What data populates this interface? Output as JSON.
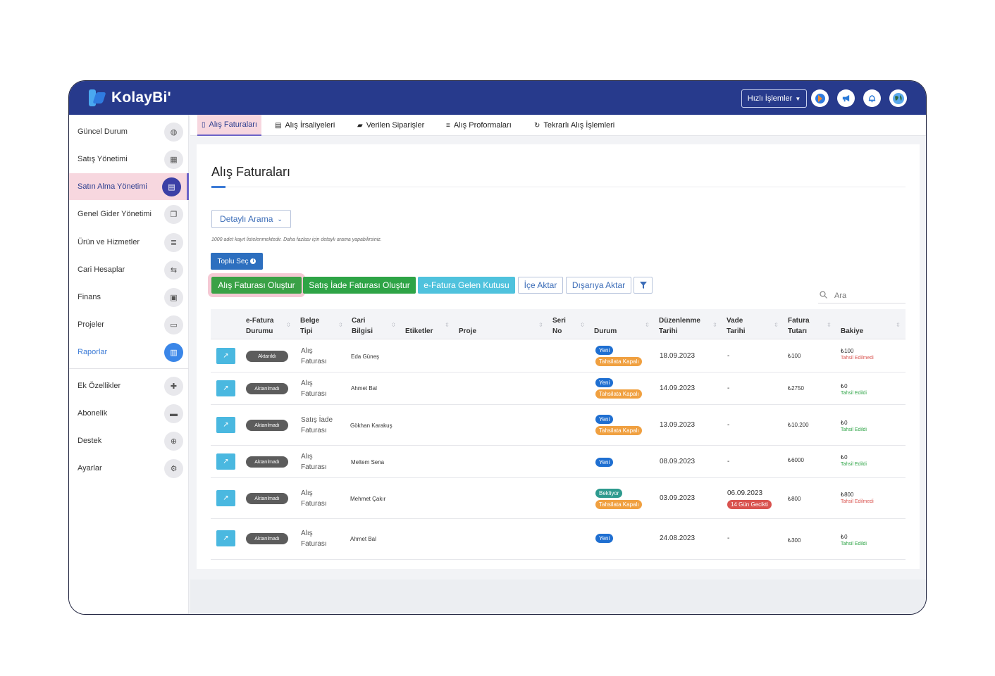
{
  "app": {
    "logo_text": "KolayBi'",
    "quick_actions": "Hızlı İşlemler"
  },
  "top_icons": [
    "app-logo-icon",
    "megaphone-icon",
    "bell-icon",
    "globe-icon"
  ],
  "sidebar": {
    "items": [
      {
        "label": "Güncel Durum",
        "icon": "dashboard-icon",
        "glyph": "◍"
      },
      {
        "label": "Satış Yönetimi",
        "icon": "calculator-icon",
        "glyph": "▦"
      },
      {
        "label": "Satın Alma Yönetimi",
        "icon": "document-icon",
        "glyph": "▤"
      },
      {
        "label": "Genel Gider Yönetimi",
        "icon": "copy-icon",
        "glyph": "❐"
      },
      {
        "label": "Ürün ve Hizmetler",
        "icon": "database-icon",
        "glyph": "≣"
      },
      {
        "label": "Cari Hesaplar",
        "icon": "handshake-icon",
        "glyph": "⇆"
      },
      {
        "label": "Finans",
        "icon": "money-icon",
        "glyph": "▣"
      },
      {
        "label": "Projeler",
        "icon": "folder-icon",
        "glyph": "▭"
      },
      {
        "label": "Raporlar",
        "icon": "chart-icon",
        "glyph": "▥"
      },
      {
        "label": "Ek Özellikler",
        "icon": "puzzle-icon",
        "glyph": "✚"
      },
      {
        "label": "Abonelik",
        "icon": "card-icon",
        "glyph": "▬"
      },
      {
        "label": "Destek",
        "icon": "lifebuoy-icon",
        "glyph": "⊕"
      },
      {
        "label": "Ayarlar",
        "icon": "gears-icon",
        "glyph": "⚙"
      }
    ]
  },
  "tabs": [
    {
      "label": "Alış Faturaları",
      "icon": "file-icon",
      "glyph": "▯"
    },
    {
      "label": "Alış İrsaliyeleri",
      "icon": "list-card-icon",
      "glyph": "▤"
    },
    {
      "label": "Verilen Siparişler",
      "icon": "truck-icon",
      "glyph": "▰"
    },
    {
      "label": "Alış Proformaları",
      "icon": "list-icon",
      "glyph": "≡"
    },
    {
      "label": "Tekrarlı Alış İşlemleri",
      "icon": "refresh-icon",
      "glyph": "↻"
    }
  ],
  "page": {
    "title": "Alış Faturaları",
    "detail_search": "Detaylı Arama",
    "note": "1000 adet kayıt listelenmektedir. Daha fazlası için detaylı arama yapabilirsiniz.",
    "bulk_select": "Toplu Seç",
    "actions": {
      "create_purchase": "Alış Faturası Oluştur",
      "create_return": "Satış İade Faturası Oluştur",
      "inbox": "e-Fatura Gelen Kutusu",
      "import": "İçe Aktar",
      "export": "Dışarıya Aktar"
    },
    "search_placeholder": "Ara"
  },
  "table": {
    "headers": {
      "efatura": [
        "e-Fatura",
        "Durumu"
      ],
      "belge": [
        "Belge",
        "Tipi"
      ],
      "cari": [
        "Cari",
        "Bilgisi"
      ],
      "etiketler": "Etiketler",
      "proje": "Proje",
      "seri": [
        "Seri",
        "No"
      ],
      "durum": "Durum",
      "duzenlenme": [
        "Düzenlenme",
        "Tarihi"
      ],
      "vade": [
        "Vade",
        "Tarihi"
      ],
      "tutar": [
        "Fatura",
        "Tutarı"
      ],
      "bakiye": "Bakiye"
    },
    "rows": [
      {
        "efatura": "Aktarıldı",
        "belge": [
          "Alış",
          "Faturası"
        ],
        "cari": "Eda Güneş",
        "durum": [
          "Yeni",
          "Tahsilata Kapalı"
        ],
        "durum_colors": [
          "blue",
          "orange"
        ],
        "duzenlenme": "18.09.2023",
        "vade": "-",
        "vade_badge": "",
        "tutar": "₺100",
        "bakiye": "₺100",
        "bakiye_label": "Tahsil Edilmedi",
        "bakiye_color": "red"
      },
      {
        "efatura": "Aktarılmadı",
        "belge": [
          "Alış",
          "Faturası"
        ],
        "cari": "Ahmet Bal",
        "durum": [
          "Yeni",
          "Tahsilata Kapalı"
        ],
        "durum_colors": [
          "blue",
          "orange"
        ],
        "duzenlenme": "14.09.2023",
        "vade": "-",
        "vade_badge": "",
        "tutar": "₺2750",
        "bakiye": "₺0",
        "bakiye_label": "Tahsil Edildi",
        "bakiye_color": "green"
      },
      {
        "efatura": "Aktarılmadı",
        "belge": [
          "Satış İade",
          "Faturası"
        ],
        "cari": "Gökhan Karakuş",
        "durum": [
          "Yeni",
          "Tahsilata Kapalı"
        ],
        "durum_colors": [
          "blue",
          "orange"
        ],
        "duzenlenme": "13.09.2023",
        "vade": "-",
        "vade_badge": "",
        "tutar": "₺10.200",
        "bakiye": "₺0",
        "bakiye_label": "Tahsil Edildi",
        "bakiye_color": "green"
      },
      {
        "efatura": "Aktarılmadı",
        "belge": [
          "Alış",
          "Faturası"
        ],
        "cari": "Meltem Sena",
        "durum": [
          "Yeni"
        ],
        "durum_colors": [
          "blue"
        ],
        "duzenlenme": "08.09.2023",
        "vade": "-",
        "vade_badge": "",
        "tutar": "₺6000",
        "bakiye": "₺0",
        "bakiye_label": "Tahsil Edildi",
        "bakiye_color": "green"
      },
      {
        "efatura": "Aktarılmadı",
        "belge": [
          "Alış",
          "Faturası"
        ],
        "cari": "Mehmet Çakır",
        "durum": [
          "Bekliyor",
          "Tahsilata Kapalı"
        ],
        "durum_colors": [
          "teal",
          "orange"
        ],
        "duzenlenme": "03.09.2023",
        "vade": "06.09.2023",
        "vade_badge": "14 Gün Gecikti",
        "tutar": "₺800",
        "bakiye": "₺800",
        "bakiye_label": "Tahsil Edilmedi",
        "bakiye_color": "red"
      },
      {
        "efatura": "Aktarılmadı",
        "belge": [
          "Alış",
          "Faturası"
        ],
        "cari": "Ahmet Bal",
        "durum": [
          "Yeni"
        ],
        "durum_colors": [
          "blue"
        ],
        "duzenlenme": "24.08.2023",
        "vade": "-",
        "vade_badge": "",
        "tutar": "₺300",
        "bakiye": "₺0",
        "bakiye_label": "Tahsil Edildi",
        "bakiye_color": "green"
      }
    ]
  },
  "colors": {
    "nav": "#273a8c",
    "active_highlight": "#f7d7df",
    "green": "#3aa146",
    "cyan": "#4fc2dd",
    "blue_accent": "#3c7bd6"
  }
}
